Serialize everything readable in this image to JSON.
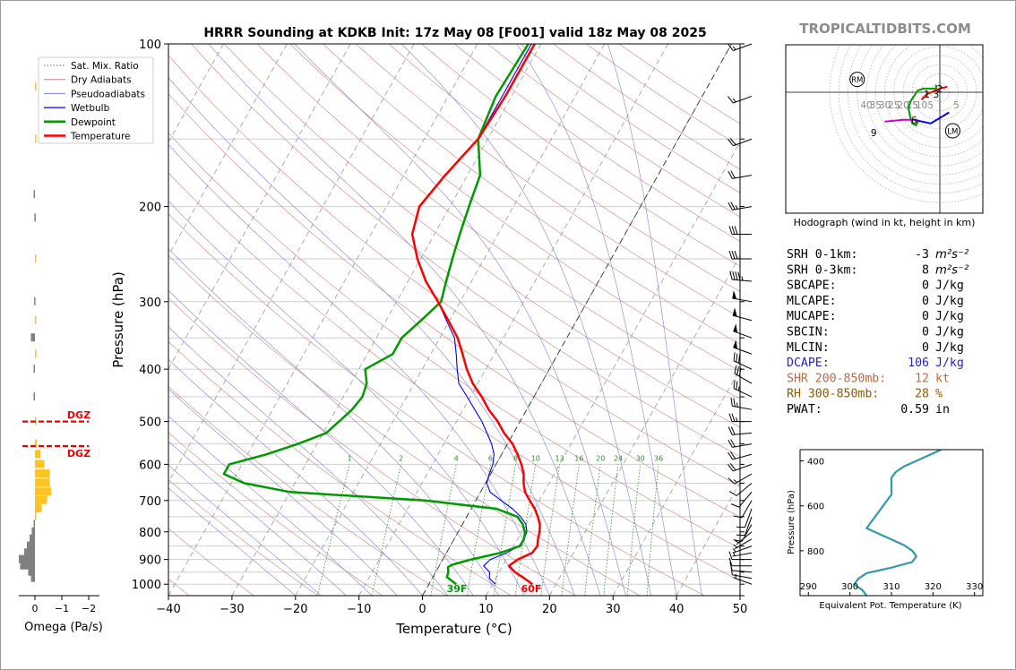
{
  "title": "HRRR Sounding at KDKB Init: 17z May 08 [F001] valid 18z May 08 2025",
  "brand": "TROPICALTIDBITS.COM",
  "skewt": {
    "type": "line",
    "xlabel": "Temperature (°C)",
    "ylabel": "Pressure (hPa)",
    "xlim": [
      -40,
      50
    ],
    "ylim": [
      1050,
      100
    ],
    "y_log_scale": true,
    "x_ticks": [
      "−40",
      "−30",
      "−20",
      "−10",
      "0",
      "10",
      "20",
      "30",
      "40",
      "50"
    ],
    "y_ticks": [
      "100",
      "200",
      "300",
      "400",
      "500",
      "600",
      "700",
      "800",
      "900",
      "1000"
    ],
    "legend": {
      "placement": "top-left",
      "entries": [
        "Sat. Mix. Ratio",
        "Dry Adiabats",
        "Pseudoadiabats",
        "Wetbulb",
        "Dewpoint",
        "Temperature"
      ]
    },
    "mixing_ratio_labels": [
      "1",
      "2",
      "4",
      "6",
      "8",
      "10",
      "13",
      "16",
      "20",
      "24",
      "30",
      "36"
    ],
    "annotations": {
      "surface_dewpoint": "39F",
      "surface_temperature": "60F"
    },
    "colors": {
      "temperature": "#ff0000",
      "dewpoint": "#009900",
      "wetbulb": "#0000ee",
      "dry_adiabat": "#d08080",
      "pseudoadiabat": "#8080d8",
      "mixing_ratio": "#2e8b2e",
      "isotherm": "#999999"
    },
    "series": [
      {
        "name": "Temperature",
        "p": [
          1000,
          975,
          950,
          925,
          900,
          875,
          850,
          825,
          800,
          775,
          750,
          725,
          700,
          675,
          650,
          625,
          600,
          575,
          550,
          525,
          500,
          475,
          450,
          425,
          400,
          375,
          350,
          325,
          300,
          275,
          250,
          225,
          200,
          175,
          150,
          125,
          100
        ],
        "t": [
          16.3,
          14.5,
          12.5,
          11.0,
          11.8,
          13.5,
          13.7,
          13.2,
          12.8,
          12.2,
          11.2,
          10.0,
          8.5,
          7.0,
          6.0,
          5.2,
          4.0,
          2.5,
          0.8,
          -1.5,
          -3.5,
          -6.0,
          -8.2,
          -10.8,
          -13.0,
          -15.0,
          -17.2,
          -20.2,
          -23.5,
          -27.2,
          -30.5,
          -33.5,
          -34.8,
          -33.5,
          -31.5,
          -31.0,
          -31.0
        ]
      },
      {
        "name": "Dewpoint",
        "p": [
          1000,
          970,
          950,
          930,
          920,
          910,
          900,
          875,
          850,
          825,
          800,
          775,
          750,
          725,
          700,
          675,
          650,
          625,
          600,
          575,
          550,
          525,
          500,
          475,
          450,
          425,
          400,
          375,
          350,
          325,
          300,
          275,
          250,
          225,
          200,
          175,
          150,
          125,
          100
        ],
        "t": [
          4.3,
          2.2,
          2.0,
          1.5,
          2.0,
          3.2,
          4.5,
          8.5,
          11.0,
          11.0,
          10.5,
          9.5,
          8.0,
          4.0,
          -8.0,
          -30.0,
          -38.0,
          -42.0,
          -42.0,
          -37.0,
          -33.0,
          -29.5,
          -28.5,
          -27.5,
          -27.0,
          -27.5,
          -29.0,
          -26.0,
          -26.0,
          -24.5,
          -23.0,
          -24.0,
          -25.0,
          -26.0,
          -27.0,
          -28.0,
          -31.5,
          -32.5,
          -32.0
        ]
      },
      {
        "name": "Wetbulb",
        "p": [
          1000,
          975,
          950,
          925,
          900,
          875,
          850,
          825,
          800,
          775,
          750,
          725,
          700,
          675,
          650,
          625,
          600,
          575,
          550,
          525,
          500,
          475,
          450,
          425,
          400,
          375,
          350,
          325,
          300,
          275,
          250,
          225,
          200,
          175,
          150,
          125,
          100
        ],
        "t": [
          10.5,
          9.0,
          8.5,
          7.0,
          7.5,
          9.5,
          10.8,
          11.0,
          10.8,
          10.0,
          8.5,
          6.5,
          4.0,
          1.5,
          0.2,
          -0.2,
          -0.5,
          -1.2,
          -2.5,
          -4.2,
          -6.0,
          -8.2,
          -10.5,
          -13.0,
          -14.5,
          -16.0,
          -17.7,
          -20.5,
          -23.5,
          -27.2,
          -30.5,
          -33.5,
          -34.8,
          -33.5,
          -31.5,
          -31.5,
          -31.5
        ]
      }
    ]
  },
  "omega": {
    "xlabel": "Omega (Pa/s)",
    "x_ticks": [
      "0",
      "−1",
      "−2"
    ],
    "xlim": [
      0.5,
      -2.5
    ],
    "dgz_label": "DGZ",
    "dgz_pressures": [
      500,
      555
    ],
    "colors": {
      "positive": "#808080",
      "negative": "#ffc320",
      "dgz": "#ee0000"
    },
    "p": [
      975,
      950,
      925,
      900,
      875,
      850,
      825,
      800,
      775,
      750,
      725,
      700,
      675,
      650,
      625,
      600,
      575,
      550,
      500,
      450,
      400,
      375,
      350,
      325,
      300,
      250,
      210,
      190,
      150,
      120
    ],
    "w": [
      0.15,
      0.25,
      0.55,
      0.6,
      0.4,
      0.3,
      0.2,
      0.12,
      0.05,
      -0.05,
      -0.25,
      -0.45,
      -0.6,
      -0.55,
      -0.55,
      -0.35,
      -0.2,
      -0.08,
      -0.05,
      0.05,
      0.05,
      -0.03,
      0.15,
      -0.02,
      0.03,
      -0.03,
      0.02,
      0.05,
      -0.05,
      -0.03
    ]
  },
  "hodograph": {
    "xlabel": "Hodograph (wind in kt, height in km)",
    "ring_labels": [
      "40",
      "35",
      "30",
      "25",
      "20",
      "15",
      "10",
      "5",
      "5"
    ],
    "markers": [
      "RM",
      "LM"
    ],
    "height_labels": [
      "1",
      "2",
      "3",
      "6",
      "9"
    ],
    "segments": [
      {
        "color": "#ee0000",
        "points": [
          [
            -10,
            -4
          ],
          [
            -7,
            -1
          ],
          [
            0,
            2
          ],
          [
            4,
            3
          ]
        ]
      },
      {
        "color": "#009900",
        "points": [
          [
            -2,
            4
          ],
          [
            -2,
            2
          ],
          [
            -9,
            2
          ],
          [
            -12,
            1
          ],
          [
            -14,
            -2
          ],
          [
            -16,
            -5
          ],
          [
            -17,
            -9
          ],
          [
            -16,
            -14
          ],
          [
            -15,
            -17
          ],
          [
            -13,
            -18
          ],
          [
            -12,
            -16
          ],
          [
            -14,
            -15
          ]
        ]
      },
      {
        "color": "#0000ee",
        "points": [
          [
            -14,
            -15
          ],
          [
            -5,
            -17
          ],
          [
            5,
            -11
          ]
        ]
      },
      {
        "color": "#cc00cc",
        "points": [
          [
            -30,
            -16
          ],
          [
            -20,
            -15
          ],
          [
            -12,
            -15
          ]
        ]
      }
    ],
    "height_points": [
      {
        "label": "1",
        "u": -7,
        "v": -1
      },
      {
        "label": "2",
        "u": 0,
        "v": 2
      },
      {
        "label": "3",
        "u": -2,
        "v": -1
      },
      {
        "label": "6",
        "u": -14,
        "v": -15
      },
      {
        "label": "9",
        "u": -36,
        "v": -22
      }
    ]
  },
  "indices": [
    {
      "label": "SRH 0-1km:",
      "value": "-3",
      "unit": "m²s⁻²",
      "color": "#000000"
    },
    {
      "label": "SRH 0-3km:",
      "value": "8",
      "unit": "m²s⁻²",
      "color": "#000000"
    },
    {
      "label": "SBCAPE:",
      "value": "0",
      "unit": "J/kg",
      "color": "#000000"
    },
    {
      "label": "MLCAPE:",
      "value": "0",
      "unit": "J/kg",
      "color": "#000000"
    },
    {
      "label": "MUCAPE:",
      "value": "0",
      "unit": "J/kg",
      "color": "#000000"
    },
    {
      "label": "SBCIN:",
      "value": "0",
      "unit": "J/kg",
      "color": "#000000"
    },
    {
      "label": "MLCIN:",
      "value": "0",
      "unit": "J/kg",
      "color": "#000000"
    },
    {
      "label": "DCAPE:",
      "value": "106",
      "unit": "J/kg",
      "color": "#2222cc"
    },
    {
      "label": "SHR 200-850mb:",
      "value": "12",
      "unit": "kt",
      "color": "#cc6633"
    },
    {
      "label": "RH 300-850mb:",
      "value": "28",
      "unit": "%",
      "color": "#8b5a00"
    },
    {
      "label": "PWAT:",
      "value": "0.59",
      "unit": "in",
      "color": "#000000"
    }
  ],
  "theta_e": {
    "type": "line",
    "xlabel": "Equivalent Pot. Temperature (K)",
    "ylabel": "Pressure (hPa)",
    "xlim": [
      288,
      332
    ],
    "ylim": [
      1000,
      350
    ],
    "x_ticks": [
      "290",
      "300",
      "310",
      "320",
      "330"
    ],
    "y_ticks": [
      "400",
      "600",
      "800"
    ],
    "color": "#3399aa",
    "p": [
      1000,
      975,
      950,
      925,
      900,
      875,
      850,
      825,
      800,
      775,
      750,
      725,
      700,
      675,
      650,
      625,
      600,
      575,
      550,
      525,
      500,
      475,
      450,
      425,
      400,
      375,
      350
    ],
    "te": [
      304,
      303,
      301,
      302,
      304,
      310,
      315,
      316,
      315,
      313,
      310,
      307,
      304,
      305,
      306,
      307,
      308,
      309,
      310,
      310,
      310,
      310,
      311,
      313,
      316,
      319,
      322
    ]
  },
  "winds": {
    "p": [
      100,
      125,
      150,
      175,
      200,
      225,
      250,
      275,
      300,
      325,
      350,
      375,
      400,
      425,
      450,
      475,
      500,
      525,
      550,
      575,
      600,
      625,
      650,
      675,
      700,
      725,
      750,
      775,
      800,
      825,
      850,
      875,
      900,
      925,
      950,
      975,
      1000
    ],
    "dir": [
      250,
      250,
      250,
      260,
      260,
      270,
      270,
      275,
      280,
      285,
      290,
      290,
      295,
      300,
      295,
      280,
      270,
      265,
      260,
      255,
      250,
      240,
      230,
      220,
      210,
      200,
      200,
      210,
      230,
      240,
      250,
      260,
      270,
      270,
      275,
      280,
      290
    ],
    "spd": [
      15,
      15,
      20,
      20,
      25,
      30,
      30,
      45,
      50,
      50,
      50,
      50,
      30,
      30,
      25,
      25,
      25,
      20,
      20,
      20,
      20,
      15,
      10,
      10,
      10,
      10,
      10,
      10,
      5,
      5,
      5,
      5,
      10,
      10,
      10,
      10,
      5
    ]
  }
}
